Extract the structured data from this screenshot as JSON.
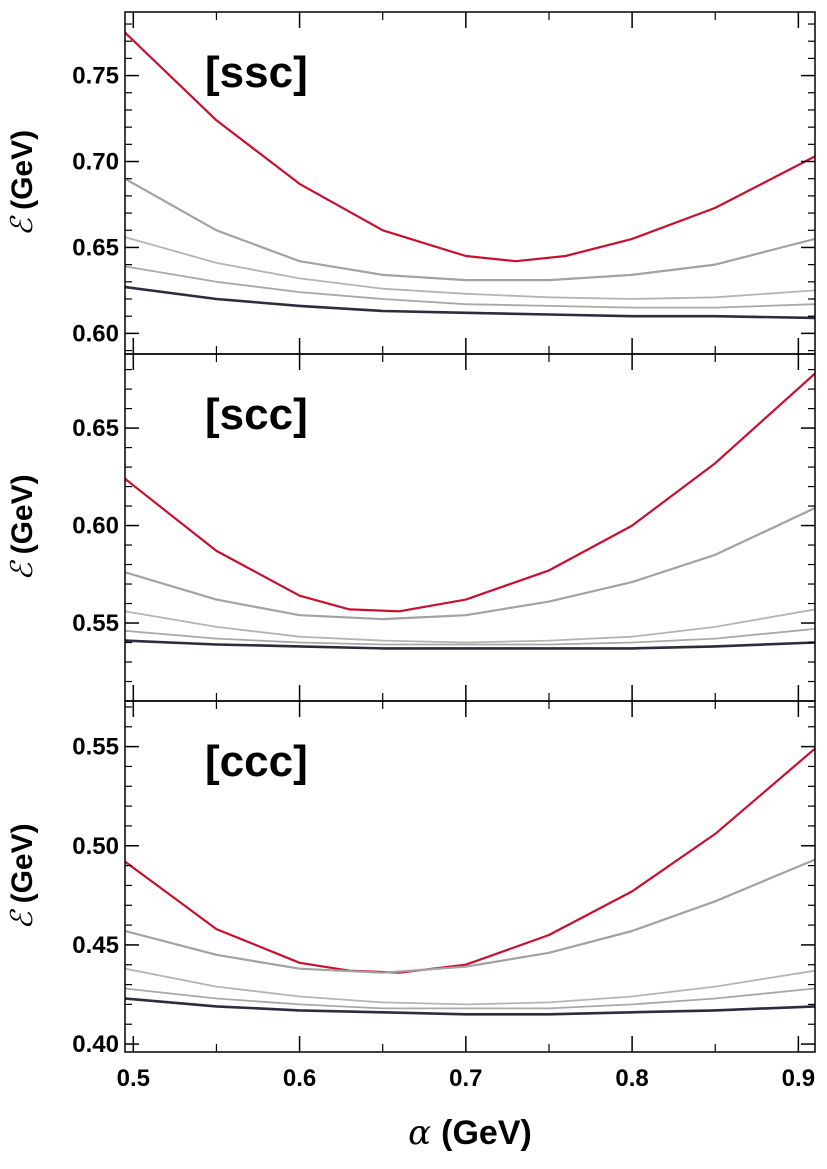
{
  "chart_data": {
    "type": "line",
    "xlabel_symbol": "α",
    "xlabel_unit": "(GeV)",
    "ylabel_symbol": "ℰ",
    "ylabel_unit": "(GeV)",
    "xlim": [
      0.495,
      0.91
    ],
    "xticks": [
      "0.5",
      "0.6",
      "0.7",
      "0.8",
      "0.9"
    ],
    "xtick_values": [
      0.5,
      0.6,
      0.7,
      0.8,
      0.9
    ],
    "series_colors": [
      "#c8102e",
      "#a2a2a2",
      "#b4b4b4",
      "#a8a8a8",
      "#2c2c3e"
    ],
    "panels": [
      {
        "title": "[ssc]",
        "ylim": [
          0.588,
          0.787
        ],
        "yticks": [
          "0.60",
          "0.65",
          "0.70",
          "0.75"
        ],
        "ytick_values": [
          0.6,
          0.65,
          0.7,
          0.75
        ],
        "series": [
          {
            "x": [
              0.495,
              0.55,
              0.6,
              0.65,
              0.7,
              0.73,
              0.76,
              0.8,
              0.85,
              0.91
            ],
            "values": [
              0.775,
              0.724,
              0.687,
              0.66,
              0.645,
              0.642,
              0.645,
              0.655,
              0.673,
              0.703
            ]
          },
          {
            "x": [
              0.495,
              0.55,
              0.6,
              0.65,
              0.7,
              0.75,
              0.8,
              0.85,
              0.91
            ],
            "values": [
              0.69,
              0.66,
              0.642,
              0.634,
              0.631,
              0.631,
              0.634,
              0.64,
              0.655
            ]
          },
          {
            "x": [
              0.495,
              0.55,
              0.6,
              0.65,
              0.7,
              0.75,
              0.8,
              0.85,
              0.91
            ],
            "values": [
              0.656,
              0.641,
              0.632,
              0.626,
              0.623,
              0.621,
              0.62,
              0.621,
              0.625
            ]
          },
          {
            "x": [
              0.495,
              0.55,
              0.6,
              0.65,
              0.7,
              0.75,
              0.8,
              0.85,
              0.91
            ],
            "values": [
              0.639,
              0.63,
              0.624,
              0.62,
              0.617,
              0.616,
              0.615,
              0.615,
              0.617
            ]
          },
          {
            "x": [
              0.495,
              0.55,
              0.6,
              0.65,
              0.7,
              0.75,
              0.8,
              0.85,
              0.91
            ],
            "values": [
              0.627,
              0.62,
              0.616,
              0.613,
              0.612,
              0.611,
              0.61,
              0.61,
              0.609
            ]
          }
        ]
      },
      {
        "title": "[scc]",
        "ylim": [
          0.51,
          0.688
        ],
        "yticks": [
          "0.55",
          "0.60",
          "0.65"
        ],
        "ytick_values": [
          0.55,
          0.6,
          0.65
        ],
        "series": [
          {
            "x": [
              0.495,
              0.55,
              0.6,
              0.63,
              0.66,
              0.7,
              0.75,
              0.8,
              0.85,
              0.91
            ],
            "values": [
              0.624,
              0.587,
              0.564,
              0.557,
              0.556,
              0.562,
              0.577,
              0.6,
              0.632,
              0.678
            ]
          },
          {
            "x": [
              0.495,
              0.55,
              0.6,
              0.65,
              0.7,
              0.75,
              0.8,
              0.85,
              0.91
            ],
            "values": [
              0.576,
              0.562,
              0.554,
              0.552,
              0.554,
              0.561,
              0.571,
              0.585,
              0.609
            ]
          },
          {
            "x": [
              0.495,
              0.55,
              0.6,
              0.65,
              0.7,
              0.75,
              0.8,
              0.85,
              0.91
            ],
            "values": [
              0.556,
              0.548,
              0.543,
              0.541,
              0.54,
              0.541,
              0.543,
              0.548,
              0.557
            ]
          },
          {
            "x": [
              0.495,
              0.55,
              0.6,
              0.65,
              0.7,
              0.75,
              0.8,
              0.85,
              0.91
            ],
            "values": [
              0.546,
              0.542,
              0.54,
              0.539,
              0.539,
              0.539,
              0.54,
              0.542,
              0.547
            ]
          },
          {
            "x": [
              0.495,
              0.55,
              0.6,
              0.65,
              0.7,
              0.75,
              0.8,
              0.85,
              0.91
            ],
            "values": [
              0.541,
              0.539,
              0.538,
              0.537,
              0.537,
              0.537,
              0.537,
              0.538,
              0.54
            ]
          }
        ]
      },
      {
        "title": "[ccc]",
        "ylim": [
          0.396,
          0.573
        ],
        "yticks": [
          "0.40",
          "0.45",
          "0.50",
          "0.55"
        ],
        "ytick_values": [
          0.4,
          0.45,
          0.5,
          0.55
        ],
        "series": [
          {
            "x": [
              0.495,
              0.55,
              0.6,
              0.63,
              0.66,
              0.7,
              0.75,
              0.8,
              0.85,
              0.91
            ],
            "values": [
              0.492,
              0.458,
              0.441,
              0.437,
              0.436,
              0.44,
              0.455,
              0.477,
              0.506,
              0.549
            ]
          },
          {
            "x": [
              0.495,
              0.55,
              0.6,
              0.65,
              0.7,
              0.75,
              0.8,
              0.85,
              0.91
            ],
            "values": [
              0.457,
              0.445,
              0.438,
              0.436,
              0.439,
              0.446,
              0.457,
              0.472,
              0.493
            ]
          },
          {
            "x": [
              0.495,
              0.55,
              0.6,
              0.65,
              0.7,
              0.75,
              0.8,
              0.85,
              0.91
            ],
            "values": [
              0.438,
              0.429,
              0.424,
              0.421,
              0.42,
              0.421,
              0.424,
              0.429,
              0.437
            ]
          },
          {
            "x": [
              0.495,
              0.55,
              0.6,
              0.65,
              0.7,
              0.75,
              0.8,
              0.85,
              0.91
            ],
            "values": [
              0.428,
              0.423,
              0.42,
              0.418,
              0.418,
              0.418,
              0.42,
              0.423,
              0.428
            ]
          },
          {
            "x": [
              0.495,
              0.55,
              0.6,
              0.65,
              0.7,
              0.75,
              0.8,
              0.85,
              0.91
            ],
            "values": [
              0.423,
              0.419,
              0.417,
              0.416,
              0.415,
              0.415,
              0.416,
              0.417,
              0.419
            ]
          }
        ]
      }
    ]
  }
}
